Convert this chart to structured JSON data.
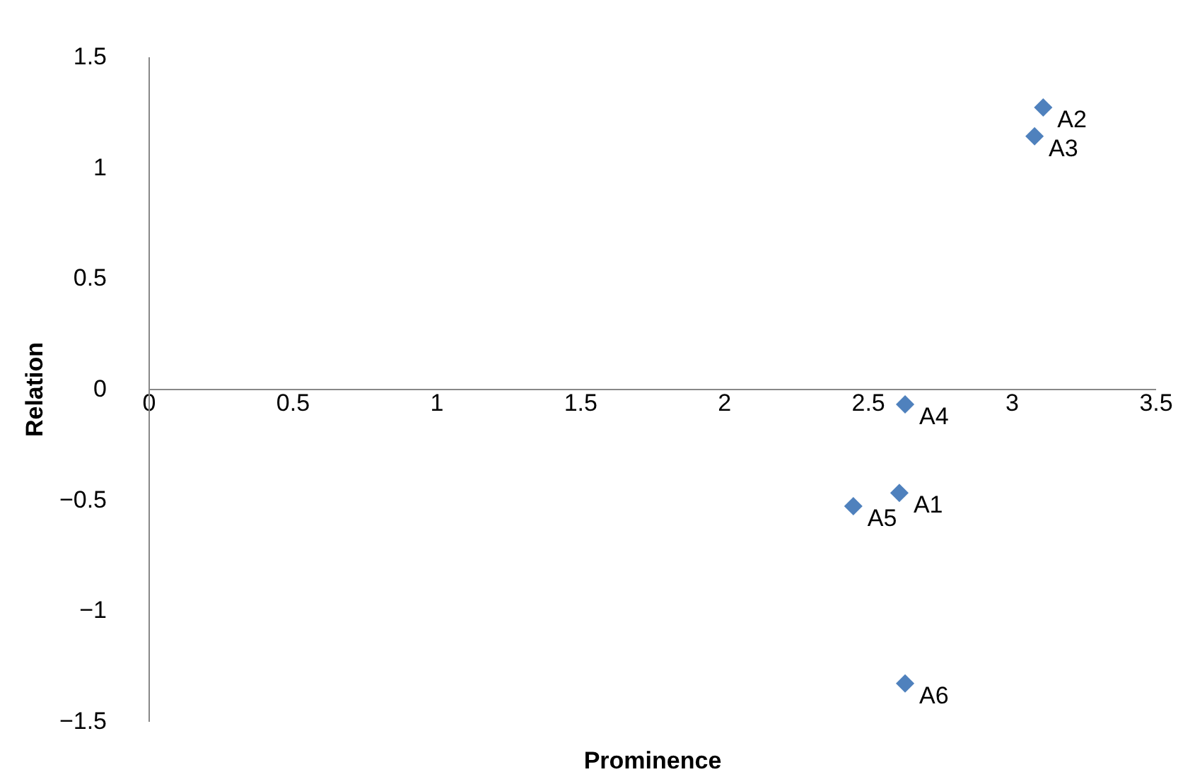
{
  "chart_data": {
    "type": "scatter",
    "xlabel": "Prominence",
    "ylabel": "Relation",
    "x": [
      2.61,
      3.11,
      3.08,
      2.63,
      2.45,
      2.63
    ],
    "series": [
      {
        "color": "#4f81bd",
        "values": [
          -0.47,
          1.27,
          1.14,
          -0.07,
          -0.53,
          -1.33
        ]
      }
    ],
    "annotations": [
      {
        "text": "A1",
        "x": 2.61,
        "y": -0.47
      },
      {
        "text": "A2",
        "x": 3.11,
        "y": 1.27
      },
      {
        "text": "A3",
        "x": 3.08,
        "y": 1.14
      },
      {
        "text": "A4",
        "x": 2.63,
        "y": -0.07
      },
      {
        "text": "A5",
        "x": 2.45,
        "y": -0.53
      },
      {
        "text": "A6",
        "x": 2.63,
        "y": -1.33
      }
    ],
    "xlim": [
      0,
      3.5
    ],
    "xticks": [
      0,
      0.5,
      1,
      1.5,
      2,
      2.5,
      3,
      3.5
    ],
    "ylim": [
      -1.5,
      1.5
    ],
    "yticks": [
      -1.5,
      -1,
      -0.5,
      0,
      0.5,
      1,
      1.5
    ],
    "grid": false,
    "marker": "diamond"
  }
}
